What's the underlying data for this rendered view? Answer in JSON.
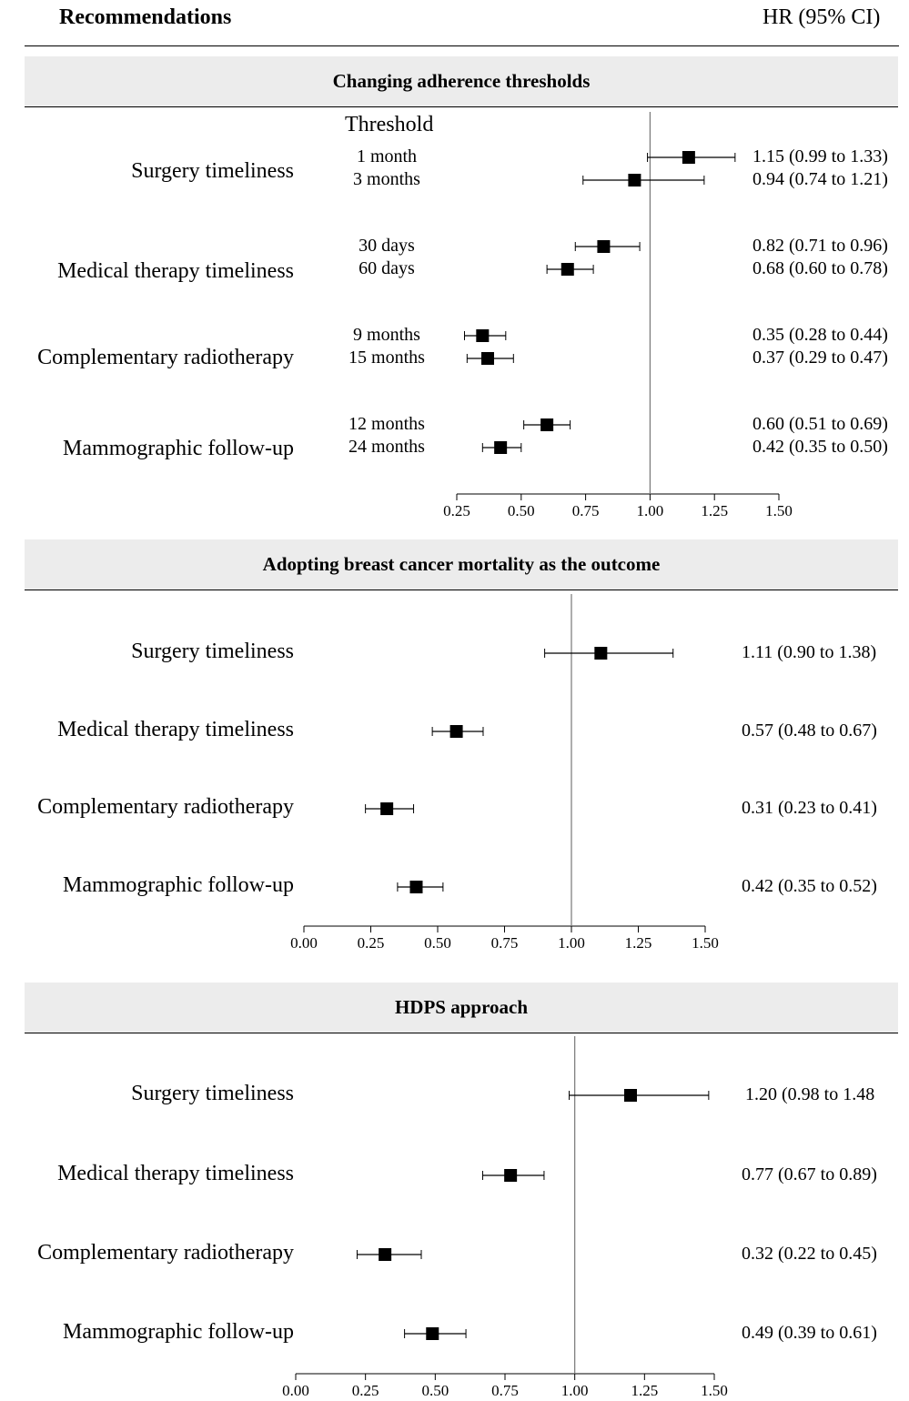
{
  "header": {
    "left": "Recommendations",
    "right": "HR (95% CI)"
  },
  "chart_data": [
    {
      "type": "forest",
      "title": "Changing adherence thresholds",
      "threshold_heading": "Threshold",
      "ticks": [
        0.25,
        0.5,
        0.75,
        1.0,
        1.25,
        1.5
      ],
      "tick_labels": [
        "0.25",
        "0.50",
        "0.75",
        "1.00",
        "1.25",
        "1.50"
      ],
      "xlim": [
        0.25,
        1.5
      ],
      "reference_line": 1.0,
      "groups": [
        {
          "label": "Surgery timeliness",
          "rows": [
            {
              "threshold": "1 month",
              "hr": 1.15,
              "lo": 0.99,
              "hi": 1.33,
              "ci_text": "1.15 (0.99 to 1.33)"
            },
            {
              "threshold": "3 months",
              "hr": 0.94,
              "lo": 0.74,
              "hi": 1.21,
              "ci_text": "0.94 (0.74 to 1.21)"
            }
          ]
        },
        {
          "label": "Medical therapy timeliness",
          "rows": [
            {
              "threshold": "30 days",
              "hr": 0.82,
              "lo": 0.71,
              "hi": 0.96,
              "ci_text": "0.82 (0.71 to 0.96)"
            },
            {
              "threshold": "60 days",
              "hr": 0.68,
              "lo": 0.6,
              "hi": 0.78,
              "ci_text": "0.68 (0.60 to 0.78)"
            }
          ]
        },
        {
          "label": "Complementary radiotherapy",
          "rows": [
            {
              "threshold": "9 months",
              "hr": 0.35,
              "lo": 0.28,
              "hi": 0.44,
              "ci_text": "0.35 (0.28 to 0.44)"
            },
            {
              "threshold": "15 months",
              "hr": 0.37,
              "lo": 0.29,
              "hi": 0.47,
              "ci_text": "0.37 (0.29 to 0.47)"
            }
          ]
        },
        {
          "label": "Mammographic follow-up",
          "rows": [
            {
              "threshold": "12 months",
              "hr": 0.6,
              "lo": 0.51,
              "hi": 0.69,
              "ci_text": "0.60 (0.51 to 0.69)"
            },
            {
              "threshold": "24 months",
              "hr": 0.42,
              "lo": 0.35,
              "hi": 0.5,
              "ci_text": "0.42 (0.35 to 0.50)"
            }
          ]
        }
      ]
    },
    {
      "type": "forest",
      "title": "Adopting breast cancer mortality as the outcome",
      "ticks": [
        0.0,
        0.25,
        0.5,
        0.75,
        1.0,
        1.25,
        1.5
      ],
      "tick_labels": [
        "0.00",
        "0.25",
        "0.50",
        "0.75",
        "1.00",
        "1.25",
        "1.50"
      ],
      "xlim": [
        0.0,
        1.5
      ],
      "reference_line": 1.0,
      "groups": [
        {
          "label": "Surgery timeliness",
          "rows": [
            {
              "hr": 1.11,
              "lo": 0.9,
              "hi": 1.38,
              "ci_text": "1.11 (0.90 to 1.38)"
            }
          ]
        },
        {
          "label": "Medical therapy timeliness",
          "rows": [
            {
              "hr": 0.57,
              "lo": 0.48,
              "hi": 0.67,
              "ci_text": "0.57 (0.48 to 0.67)"
            }
          ]
        },
        {
          "label": "Complementary radiotherapy",
          "rows": [
            {
              "hr": 0.31,
              "lo": 0.23,
              "hi": 0.41,
              "ci_text": "0.31 (0.23 to 0.41)"
            }
          ]
        },
        {
          "label": "Mammographic follow-up",
          "rows": [
            {
              "hr": 0.42,
              "lo": 0.35,
              "hi": 0.52,
              "ci_text": "0.42 (0.35 to 0.52)"
            }
          ]
        }
      ]
    },
    {
      "type": "forest",
      "title": "HDPS approach",
      "ticks": [
        0.0,
        0.25,
        0.5,
        0.75,
        1.0,
        1.25,
        1.5
      ],
      "tick_labels": [
        "0.00",
        "0.25",
        "0.50",
        "0.75",
        "1.00",
        "1.25",
        "1.50"
      ],
      "xlim": [
        0.0,
        1.5
      ],
      "reference_line": 1.0,
      "groups": [
        {
          "label": "Surgery timeliness",
          "rows": [
            {
              "hr": 1.2,
              "lo": 0.98,
              "hi": 1.48,
              "ci_text": "1.20 (0.98 to 1.48"
            }
          ]
        },
        {
          "label": "Medical therapy timeliness",
          "rows": [
            {
              "hr": 0.77,
              "lo": 0.67,
              "hi": 0.89,
              "ci_text": "0.77 (0.67 to 0.89)"
            }
          ]
        },
        {
          "label": "Complementary radiotherapy",
          "rows": [
            {
              "hr": 0.32,
              "lo": 0.22,
              "hi": 0.45,
              "ci_text": "0.32 (0.22 to 0.45)"
            }
          ]
        },
        {
          "label": "Mammographic follow-up",
          "rows": [
            {
              "hr": 0.49,
              "lo": 0.39,
              "hi": 0.61,
              "ci_text": "0.49 (0.39 to 0.61)"
            }
          ]
        }
      ]
    }
  ]
}
